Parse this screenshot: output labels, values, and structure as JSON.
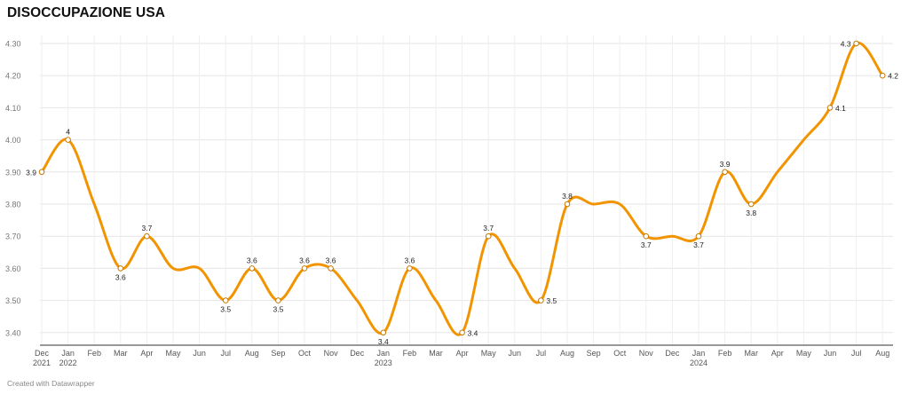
{
  "title": "DISOCCUPAZIONE USA",
  "credit": "Created with Datawrapper",
  "line_color": "#f29400",
  "chart_data": {
    "type": "line",
    "title": "DISOCCUPAZIONE USA",
    "xlabel": "",
    "ylabel": "",
    "ylim": [
      3.35,
      4.35
    ],
    "yticks": [
      3.4,
      3.5,
      3.6,
      3.7,
      3.8,
      3.9,
      4.0,
      4.1,
      4.2,
      4.3
    ],
    "ytick_labels": [
      "3.40",
      "3.50",
      "3.60",
      "3.70",
      "3.80",
      "3.90",
      "4.00",
      "4.10",
      "4.20",
      "4.30"
    ],
    "grid": true,
    "x_labels": [
      [
        "Dec",
        "2021"
      ],
      [
        "Jan",
        "2022"
      ],
      [
        "Feb",
        ""
      ],
      [
        "Mar",
        ""
      ],
      [
        "Apr",
        ""
      ],
      [
        "May",
        ""
      ],
      [
        "Jun",
        ""
      ],
      [
        "Jul",
        ""
      ],
      [
        "Aug",
        ""
      ],
      [
        "Sep",
        ""
      ],
      [
        "Oct",
        ""
      ],
      [
        "Nov",
        ""
      ],
      [
        "Dec",
        ""
      ],
      [
        "Jan",
        "2023"
      ],
      [
        "Feb",
        ""
      ],
      [
        "Mar",
        ""
      ],
      [
        "Apr",
        ""
      ],
      [
        "May",
        ""
      ],
      [
        "Jun",
        ""
      ],
      [
        "Jul",
        ""
      ],
      [
        "Aug",
        ""
      ],
      [
        "Sep",
        ""
      ],
      [
        "Oct",
        ""
      ],
      [
        "Nov",
        ""
      ],
      [
        "Dec",
        ""
      ],
      [
        "Jan",
        "2024"
      ],
      [
        "Feb",
        ""
      ],
      [
        "Mar",
        ""
      ],
      [
        "Apr",
        ""
      ],
      [
        "May",
        ""
      ],
      [
        "Jun",
        ""
      ],
      [
        "Jul",
        ""
      ],
      [
        "Aug",
        ""
      ]
    ],
    "values": [
      3.9,
      4.0,
      3.8,
      3.6,
      3.7,
      3.6,
      3.6,
      3.5,
      3.6,
      3.5,
      3.6,
      3.6,
      3.5,
      3.4,
      3.6,
      3.5,
      3.4,
      3.7,
      3.6,
      3.5,
      3.8,
      3.8,
      3.8,
      3.7,
      3.7,
      3.7,
      3.9,
      3.8,
      3.9,
      4.0,
      4.1,
      4.3,
      4.2
    ],
    "annotations": [
      {
        "i": 0,
        "text": "3.9",
        "pos": "left"
      },
      {
        "i": 1,
        "text": "4",
        "pos": "top"
      },
      {
        "i": 3,
        "text": "3.6",
        "pos": "bottom"
      },
      {
        "i": 4,
        "text": "3.7",
        "pos": "top"
      },
      {
        "i": 7,
        "text": "3.5",
        "pos": "bottom"
      },
      {
        "i": 8,
        "text": "3.6",
        "pos": "top"
      },
      {
        "i": 9,
        "text": "3.5",
        "pos": "bottom"
      },
      {
        "i": 10,
        "text": "3.6",
        "pos": "top"
      },
      {
        "i": 11,
        "text": "3.6",
        "pos": "top"
      },
      {
        "i": 13,
        "text": "3.4",
        "pos": "bottom"
      },
      {
        "i": 14,
        "text": "3.6",
        "pos": "top"
      },
      {
        "i": 16,
        "text": "3.4",
        "pos": "right"
      },
      {
        "i": 17,
        "text": "3.7",
        "pos": "top"
      },
      {
        "i": 19,
        "text": "3.5",
        "pos": "right"
      },
      {
        "i": 20,
        "text": "3.8",
        "pos": "top"
      },
      {
        "i": 23,
        "text": "3.7",
        "pos": "bottom"
      },
      {
        "i": 25,
        "text": "3.7",
        "pos": "bottom"
      },
      {
        "i": 26,
        "text": "3.9",
        "pos": "top"
      },
      {
        "i": 27,
        "text": "3.8",
        "pos": "bottom"
      },
      {
        "i": 30,
        "text": "4.1",
        "pos": "right"
      },
      {
        "i": 31,
        "text": "4.3",
        "pos": "left"
      },
      {
        "i": 32,
        "text": "4.2",
        "pos": "right"
      }
    ]
  }
}
